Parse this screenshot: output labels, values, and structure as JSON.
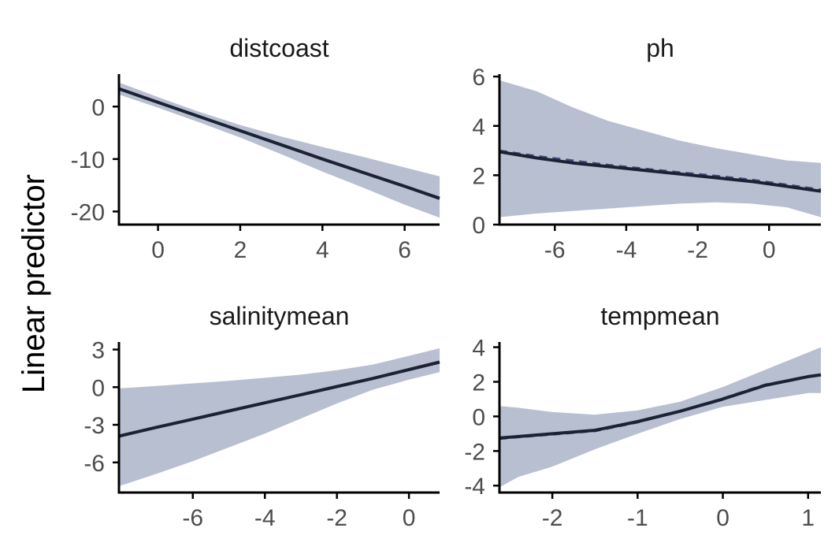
{
  "ylabel": "Linear predictor",
  "colors": {
    "band": "#b8bfd1",
    "line": "#1b2233",
    "dashed": "#3b4a78",
    "axis": "#000000",
    "tick_text": "#4d4d4d"
  },
  "chart_data": [
    {
      "type": "line",
      "title": "distcoast",
      "xlim": [
        -0.95,
        6.85
      ],
      "ylim": [
        -22.5,
        6.2
      ],
      "xticks": [
        "0",
        "2",
        "4",
        "6"
      ],
      "xtick_values": [
        0,
        2,
        4,
        6
      ],
      "yticks": [
        "0",
        "-10",
        "-20"
      ],
      "ytick_values": [
        0,
        -10,
        -20
      ],
      "series": [
        {
          "role": "fit",
          "x": [
            -0.95,
            0,
            1,
            2,
            3,
            4,
            5,
            6,
            6.85
          ],
          "y": [
            3.4,
            0.8,
            -1.9,
            -4.6,
            -7.3,
            -10.0,
            -12.6,
            -15.2,
            -17.5
          ]
        },
        {
          "role": "upper",
          "x": [
            -0.95,
            0,
            1,
            2,
            3,
            4,
            5,
            6,
            6.85
          ],
          "y": [
            4.6,
            1.8,
            -1.0,
            -3.5,
            -5.7,
            -7.7,
            -9.6,
            -11.6,
            -13.3
          ]
        },
        {
          "role": "lower",
          "x": [
            -0.95,
            0,
            1,
            2,
            3,
            4,
            5,
            6,
            6.85
          ],
          "y": [
            2.3,
            -0.2,
            -3.0,
            -5.9,
            -9.1,
            -12.4,
            -15.5,
            -18.7,
            -21.2
          ]
        }
      ]
    },
    {
      "type": "line",
      "title": "ph",
      "xlim": [
        -7.55,
        1.45
      ],
      "ylim": [
        0,
        6.1
      ],
      "xticks": [
        "-6",
        "-4",
        "-2",
        "0"
      ],
      "xtick_values": [
        -6,
        -4,
        -2,
        0
      ],
      "yticks": [
        "0",
        "2",
        "4",
        "6"
      ],
      "ytick_values": [
        0,
        2,
        4,
        6
      ],
      "series": [
        {
          "role": "fit",
          "x": [
            -7.55,
            -6.5,
            -5.5,
            -4.5,
            -3.5,
            -2.5,
            -1.5,
            -0.5,
            0.5,
            1.45
          ],
          "y": [
            2.95,
            2.7,
            2.5,
            2.35,
            2.2,
            2.05,
            1.9,
            1.75,
            1.55,
            1.35
          ]
        },
        {
          "role": "dashed",
          "x": [
            -7.55,
            -6.5,
            -5.5,
            -4.5,
            -3.5,
            -2.5,
            -1.5,
            -0.5,
            0.5,
            1.45
          ],
          "y": [
            3.0,
            2.78,
            2.6,
            2.42,
            2.27,
            2.12,
            1.98,
            1.82,
            1.62,
            1.42
          ]
        },
        {
          "role": "upper",
          "x": [
            -7.55,
            -6.5,
            -5.5,
            -4.5,
            -3.5,
            -2.5,
            -1.5,
            -0.5,
            0.5,
            1.45
          ],
          "y": [
            5.85,
            5.4,
            4.75,
            4.2,
            3.8,
            3.4,
            3.1,
            2.85,
            2.6,
            2.5
          ]
        },
        {
          "role": "lower",
          "x": [
            -7.55,
            -6.5,
            -5.5,
            -4.5,
            -3.5,
            -2.5,
            -1.5,
            -0.5,
            0.5,
            1.45
          ],
          "y": [
            0.3,
            0.45,
            0.55,
            0.65,
            0.75,
            0.85,
            0.9,
            0.85,
            0.7,
            0.3
          ]
        }
      ]
    },
    {
      "type": "line",
      "title": "salinitymean",
      "xlim": [
        -8.05,
        0.85
      ],
      "ylim": [
        -8.4,
        3.6
      ],
      "xticks": [
        "-6",
        "-4",
        "-2",
        "0"
      ],
      "xtick_values": [
        -6,
        -4,
        -2,
        0
      ],
      "yticks": [
        "3",
        "0",
        "-3",
        "-6"
      ],
      "ytick_values": [
        3,
        0,
        -3,
        -6
      ],
      "series": [
        {
          "role": "fit",
          "x": [
            -8.05,
            -7,
            -6,
            -5,
            -4,
            -3,
            -2,
            -1,
            0,
            0.85
          ],
          "y": [
            -3.9,
            -3.2,
            -2.55,
            -1.9,
            -1.25,
            -0.6,
            0.05,
            0.7,
            1.4,
            2.0
          ]
        },
        {
          "role": "upper",
          "x": [
            -8.05,
            -7,
            -6,
            -5,
            -4,
            -3,
            -2,
            -1,
            0,
            0.85
          ],
          "y": [
            -0.1,
            0.1,
            0.3,
            0.5,
            0.75,
            1.0,
            1.35,
            1.8,
            2.5,
            3.1
          ]
        },
        {
          "role": "lower",
          "x": [
            -8.05,
            -7,
            -6,
            -5,
            -4,
            -3,
            -2,
            -1,
            0,
            0.85
          ],
          "y": [
            -7.9,
            -6.9,
            -5.9,
            -4.8,
            -3.7,
            -2.5,
            -1.3,
            -0.2,
            0.6,
            1.2
          ]
        }
      ]
    },
    {
      "type": "line",
      "title": "tempmean",
      "xlim": [
        -2.62,
        1.15
      ],
      "ylim": [
        -4.4,
        4.3
      ],
      "xticks": [
        "-2",
        "-1",
        "0",
        "1"
      ],
      "xtick_values": [
        -2,
        -1,
        0,
        1
      ],
      "yticks": [
        "4",
        "2",
        "0",
        "-2",
        "-4"
      ],
      "ytick_values": [
        4,
        2,
        0,
        -2,
        -4
      ],
      "series": [
        {
          "role": "fit",
          "x": [
            -2.62,
            -2.25,
            -2.0,
            -1.5,
            -1.0,
            -0.5,
            0.0,
            0.5,
            1.0,
            1.15
          ],
          "y": [
            -1.25,
            -1.1,
            -1.0,
            -0.8,
            -0.3,
            0.3,
            1.0,
            1.8,
            2.3,
            2.4
          ]
        },
        {
          "role": "dashed",
          "x": [
            -2.62,
            -2.25,
            -2.0,
            -1.5,
            -1.0,
            -0.5,
            0.0,
            0.5,
            1.0,
            1.15
          ],
          "y": [
            -1.3,
            -1.15,
            -1.05,
            -0.85,
            -0.35,
            0.3,
            1.05,
            1.85,
            2.3,
            2.4
          ]
        },
        {
          "role": "upper",
          "x": [
            -2.62,
            -2.4,
            -2.0,
            -1.5,
            -1.0,
            -0.5,
            0.0,
            0.5,
            1.0,
            1.15
          ],
          "y": [
            0.6,
            0.5,
            0.25,
            0.1,
            0.35,
            0.85,
            1.7,
            2.7,
            3.7,
            4.0
          ]
        },
        {
          "role": "lower",
          "x": [
            -2.62,
            -2.4,
            -2.0,
            -1.5,
            -1.0,
            -0.5,
            0.0,
            0.5,
            1.0,
            1.15
          ],
          "y": [
            -4.1,
            -3.5,
            -2.9,
            -1.9,
            -1.0,
            -0.15,
            0.55,
            0.95,
            1.35,
            1.35
          ]
        }
      ]
    }
  ]
}
